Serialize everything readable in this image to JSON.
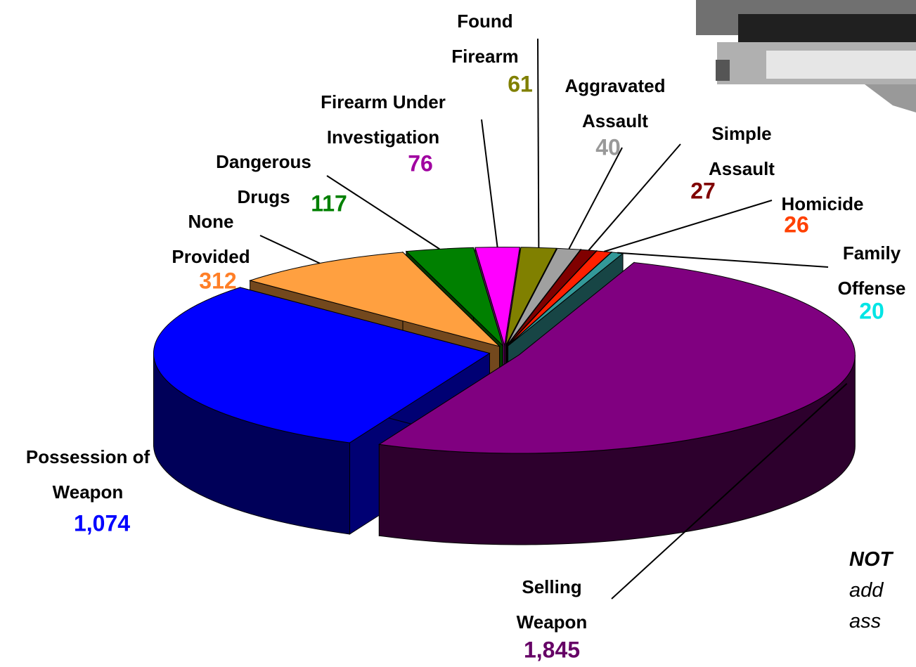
{
  "chart_data": {
    "type": "pie3d",
    "categories": [
      "Selling Weapon",
      "Possession of Weapon",
      "None Provided",
      "Dangerous Drugs",
      "Firearm Under Investigation",
      "Found Firearm",
      "Aggravated Assault",
      "Simple Assault",
      "Homicide",
      "Family Offense"
    ],
    "values": [
      1845,
      1074,
      312,
      117,
      76,
      61,
      40,
      27,
      26,
      20
    ],
    "value_labels": [
      "1,845",
      "1,074",
      "312",
      "117",
      "76",
      "61",
      "40",
      "27",
      "26",
      "20"
    ],
    "colors": [
      "#800080",
      "#0000ff",
      "#ffa040",
      "#008000",
      "#ff00ff",
      "#808000",
      "#a0a0a0",
      "#800000",
      "#ff2000",
      "#339999"
    ],
    "label_colors": [
      "#660066",
      "#0000ff",
      "#ff7f27",
      "#008000",
      "#a000a0",
      "#808000",
      "#999999",
      "#800000",
      "#ff4000",
      "#00e5e5"
    ],
    "note_lines": [
      "NOT",
      "add",
      "ass"
    ]
  }
}
